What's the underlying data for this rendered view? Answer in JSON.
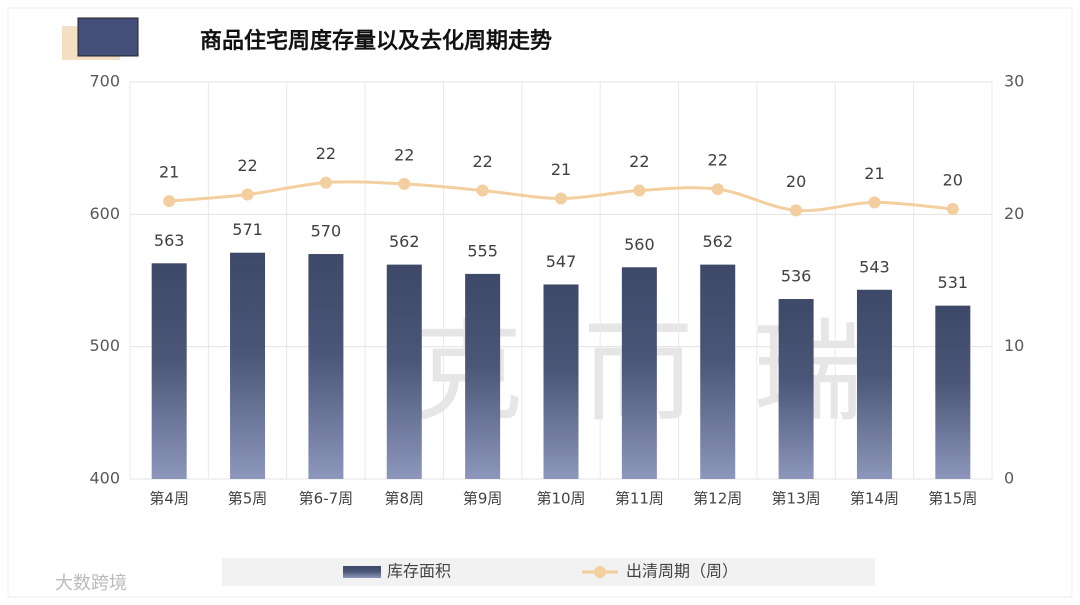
{
  "chart_data": {
    "type": "bar_line",
    "title": "商品住宅周度存量以及去化周期走势",
    "categories": [
      "第4周",
      "第5周",
      "第6-7周",
      "第8周",
      "第9周",
      "第10周",
      "第11周",
      "第12周",
      "第13周",
      "第14周",
      "第15周"
    ],
    "series": [
      {
        "name": "库存面积",
        "type": "bar",
        "color": "#46506f",
        "values": [
          563,
          571,
          570,
          562,
          555,
          547,
          560,
          562,
          536,
          543,
          531
        ]
      },
      {
        "name": "出清周期（周）",
        "type": "line",
        "axis": "y2",
        "color": "#f3cf9f",
        "values": [
          21.0,
          21.5,
          22.4,
          22.3,
          21.8,
          21.2,
          21.8,
          21.9,
          20.3,
          20.9,
          20.4
        ],
        "value_labels": [
          "21",
          "22",
          "22",
          "22",
          "22",
          "21",
          "22",
          "22",
          "20",
          "21",
          "20"
        ]
      }
    ],
    "ylim": [
      400,
      700
    ],
    "yticks": [
      400,
      500,
      600,
      700
    ],
    "y2lim": [
      0,
      30
    ],
    "y2ticks": [
      0,
      10,
      20,
      30
    ],
    "grid": true,
    "legend": "bottom",
    "watermark": "克而瑞",
    "brand": "大数跨境"
  }
}
